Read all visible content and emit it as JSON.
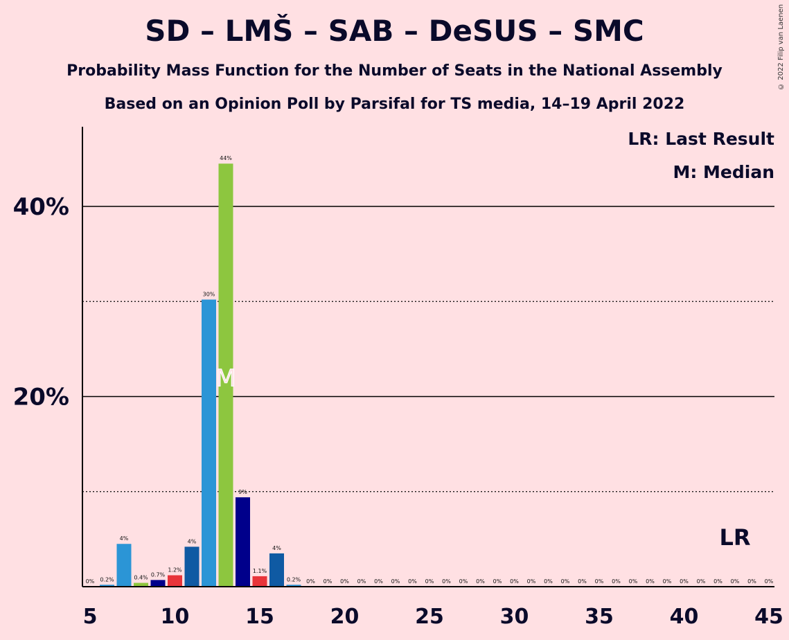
{
  "title": "SD – LMŠ – SAB – DeSUS – SMC",
  "subtitle": "Probability Mass Function for the Number of Seats in the National Assembly",
  "subtitle2": "Based on an Opinion Poll by Parsifal for TS media, 14–19 April 2022",
  "copyright": "© 2022 Filip van Laenen",
  "legend": {
    "last_result": "LR: Last Result",
    "median": "M: Median"
  },
  "last_result_marker": "LR",
  "median_marker": "M",
  "chart_data": {
    "type": "bar",
    "x": [
      5,
      6,
      7,
      8,
      9,
      10,
      11,
      12,
      13,
      14,
      15,
      16,
      17,
      18,
      19,
      20,
      21,
      22,
      23,
      24,
      25,
      26,
      27,
      28,
      29,
      30,
      31,
      32,
      33,
      34,
      35,
      36,
      37,
      38,
      39,
      40,
      41,
      42,
      43,
      44,
      45
    ],
    "values": [
      0,
      0.2,
      4.5,
      0.4,
      0.7,
      1.2,
      4.2,
      30.2,
      44.5,
      9.4,
      1.1,
      3.5,
      0.2,
      0,
      0,
      0,
      0,
      0,
      0,
      0,
      0,
      0,
      0,
      0,
      0,
      0,
      0,
      0,
      0,
      0,
      0,
      0,
      0,
      0,
      0,
      0,
      0,
      0,
      0,
      0,
      0
    ],
    "data_labels": [
      "0%",
      "0.2%",
      "4%",
      "0.4%",
      "0.7%",
      "1.2%",
      "4%",
      "30%",
      "44%",
      "9%",
      "1.1%",
      "4%",
      "0.2%",
      "0%",
      "0%",
      "0%",
      "0%",
      "0%",
      "0%",
      "0%",
      "0%",
      "0%",
      "0%",
      "0%",
      "0%",
      "0%",
      "0%",
      "0%",
      "0%",
      "0%",
      "0%",
      "0%",
      "0%",
      "0%",
      "0%",
      "0%",
      "0%",
      "0%",
      "0%",
      "0%",
      "0%"
    ],
    "colors": [
      "#2B95D6",
      "#2B95D6",
      "#2B95D6",
      "#8DC63F",
      "#00008B",
      "#E8343A",
      "#0F5AA3",
      "#2B95D6",
      "#8DC63F",
      "#00008B",
      "#E8343A",
      "#0F5AA3",
      "#2B95D6",
      "#8DC63F",
      "#00008B",
      "#E8343A",
      "#0F5AA3",
      "#2B95D6",
      "#8DC63F",
      "#00008B",
      "#E8343A",
      "#0F5AA3",
      "#2B95D6",
      "#8DC63F",
      "#00008B",
      "#E8343A",
      "#0F5AA3",
      "#2B95D6",
      "#8DC63F",
      "#00008B",
      "#E8343A",
      "#0F5AA3",
      "#2B95D6",
      "#8DC63F",
      "#00008B",
      "#E8343A",
      "#0F5AA3",
      "#2B95D6",
      "#8DC63F",
      "#00008B",
      "#E8343A"
    ],
    "xticks": [
      5,
      10,
      15,
      20,
      25,
      30,
      35,
      40,
      45
    ],
    "xtick_labels": [
      "5",
      "10",
      "15",
      "20",
      "25",
      "30",
      "35",
      "40",
      "45"
    ],
    "yticks_major": [
      20,
      40
    ],
    "ytick_labels": [
      "20%",
      "40%"
    ],
    "yticks_minor": [
      10,
      30
    ],
    "ylim": [
      0,
      48.5
    ],
    "median_seats": 13,
    "last_result_seats": 43,
    "grid": true,
    "legend_position": "top-right"
  }
}
